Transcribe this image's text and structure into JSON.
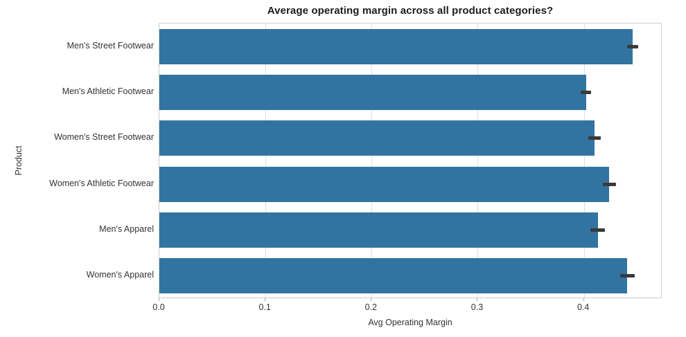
{
  "chart_data": {
    "type": "bar",
    "orientation": "horizontal",
    "title": "Average operating margin across all product categories?",
    "xlabel": "Avg Operating Margin",
    "ylabel": "Product",
    "categories": [
      "Men's Street Footwear",
      "Men's Athletic Footwear",
      "Women's Street Footwear",
      "Women's Athletic Footwear",
      "Men's Apparel",
      "Women's Apparel"
    ],
    "values": [
      0.446,
      0.402,
      0.41,
      0.424,
      0.413,
      0.441
    ],
    "error_bars": [
      0.005,
      0.005,
      0.006,
      0.006,
      0.007,
      0.007
    ],
    "xticks": [
      0.0,
      0.1,
      0.2,
      0.3,
      0.4
    ],
    "xtick_labels": [
      "0.0",
      "0.1",
      "0.2",
      "0.3",
      "0.4"
    ],
    "xlim": [
      0,
      0.474
    ],
    "grid": "vertical",
    "legend": false,
    "colors": {
      "bar": "#3274a1",
      "error_bar": "#3a3a3a",
      "grid": "#dddddd",
      "spine": "#cccccc",
      "title_text": "#1c1c1c",
      "tick_text": "#333333"
    }
  }
}
